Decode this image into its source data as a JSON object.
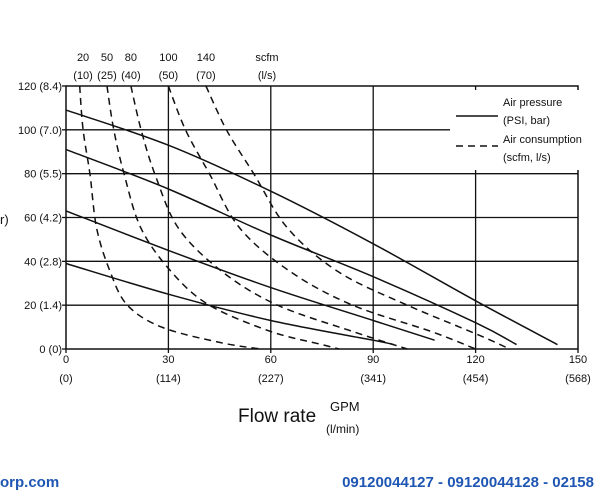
{
  "chart_data": {
    "type": "line",
    "y_axis_label_fragment": "r)",
    "xlabel": "Flow rate",
    "xlabel_unit": "GPM",
    "xlabel_unit_metric": "(l/min)",
    "xlim": [
      0,
      150
    ],
    "ylim": [
      0,
      120
    ],
    "x_ticks": [
      {
        "value": 0,
        "label": "0",
        "metric": "(0)"
      },
      {
        "value": 30,
        "label": "30",
        "metric": "(114)"
      },
      {
        "value": 60,
        "label": "60",
        "metric": "(227)"
      },
      {
        "value": 90,
        "label": "90",
        "metric": "(341)"
      },
      {
        "value": 120,
        "label": "120",
        "metric": "(454)"
      },
      {
        "value": 150,
        "label": "150",
        "metric": "(568)"
      }
    ],
    "y_ticks": [
      {
        "value": 0,
        "label": "0 (0)"
      },
      {
        "value": 20,
        "label": "20 (1.4)"
      },
      {
        "value": 40,
        "label": "40 (2.8)"
      },
      {
        "value": 60,
        "label": "60 (4.2)"
      },
      {
        "value": 80,
        "label": "80 (5.5)"
      },
      {
        "value": 100,
        "label": "100 (7.0)"
      },
      {
        "value": 120,
        "label": "120 (8.4)"
      }
    ],
    "top_scale": {
      "unit": "scfm",
      "unit_metric": "(l/s)",
      "ticks": [
        {
          "label": "20",
          "metric": "(10)",
          "x_at_top": 5
        },
        {
          "label": "50",
          "metric": "(25)",
          "x_at_top": 12
        },
        {
          "label": "80",
          "metric": "(40)",
          "x_at_top": 19
        },
        {
          "label": "100",
          "metric": "(50)",
          "x_at_top": 30
        },
        {
          "label": "140",
          "metric": "(70)",
          "x_at_top": 41
        }
      ]
    },
    "legend": {
      "placement": "top-right",
      "entries": [
        {
          "label": "Air pressure",
          "sublabel": "(PSI, bar)",
          "style": "solid"
        },
        {
          "label": "Air consumption",
          "sublabel": "(scfm, l/s)",
          "style": "dashed"
        }
      ]
    },
    "grid": true,
    "series": [
      {
        "style": "solid",
        "points": [
          [
            0,
            109
          ],
          [
            30,
            93
          ],
          [
            60,
            72
          ],
          [
            90,
            48
          ],
          [
            120,
            22
          ],
          [
            144,
            2
          ]
        ]
      },
      {
        "style": "solid",
        "points": [
          [
            0,
            91
          ],
          [
            30,
            73
          ],
          [
            60,
            52
          ],
          [
            90,
            33
          ],
          [
            120,
            12
          ],
          [
            132,
            2
          ]
        ]
      },
      {
        "style": "solid",
        "points": [
          [
            0,
            63
          ],
          [
            30,
            45
          ],
          [
            60,
            28
          ],
          [
            90,
            13
          ],
          [
            108,
            4
          ]
        ]
      },
      {
        "style": "solid",
        "points": [
          [
            0,
            39
          ],
          [
            30,
            25
          ],
          [
            60,
            13
          ],
          [
            90,
            4
          ],
          [
            96,
            2
          ]
        ]
      },
      {
        "style": "dashed",
        "points": [
          [
            4,
            120
          ],
          [
            5,
            100
          ],
          [
            7,
            80
          ],
          [
            9,
            55
          ],
          [
            13,
            35
          ],
          [
            18,
            20
          ],
          [
            28,
            10
          ],
          [
            45,
            3
          ],
          [
            57,
            0
          ]
        ]
      },
      {
        "style": "dashed",
        "points": [
          [
            12,
            120
          ],
          [
            14,
            100
          ],
          [
            17,
            80
          ],
          [
            22,
            55
          ],
          [
            31,
            35
          ],
          [
            42,
            20
          ],
          [
            60,
            8
          ],
          [
            75,
            2
          ],
          [
            80,
            0
          ]
        ]
      },
      {
        "style": "dashed",
        "points": [
          [
            19,
            120
          ],
          [
            22,
            100
          ],
          [
            26,
            80
          ],
          [
            33,
            55
          ],
          [
            46,
            35
          ],
          [
            62,
            20
          ],
          [
            84,
            8
          ],
          [
            100,
            0
          ]
        ]
      },
      {
        "style": "dashed",
        "points": [
          [
            30,
            120
          ],
          [
            35,
            100
          ],
          [
            42,
            80
          ],
          [
            51,
            55
          ],
          [
            66,
            35
          ],
          [
            84,
            20
          ],
          [
            107,
            8
          ],
          [
            120,
            0
          ]
        ]
      },
      {
        "style": "dashed",
        "points": [
          [
            41,
            120
          ],
          [
            47,
            100
          ],
          [
            55,
            80
          ],
          [
            65,
            55
          ],
          [
            80,
            35
          ],
          [
            100,
            20
          ],
          [
            120,
            7
          ],
          [
            130,
            0
          ]
        ]
      }
    ]
  },
  "footer": {
    "left": "orp.com",
    "right": "09120044127 - 09120044128 - 02158"
  }
}
